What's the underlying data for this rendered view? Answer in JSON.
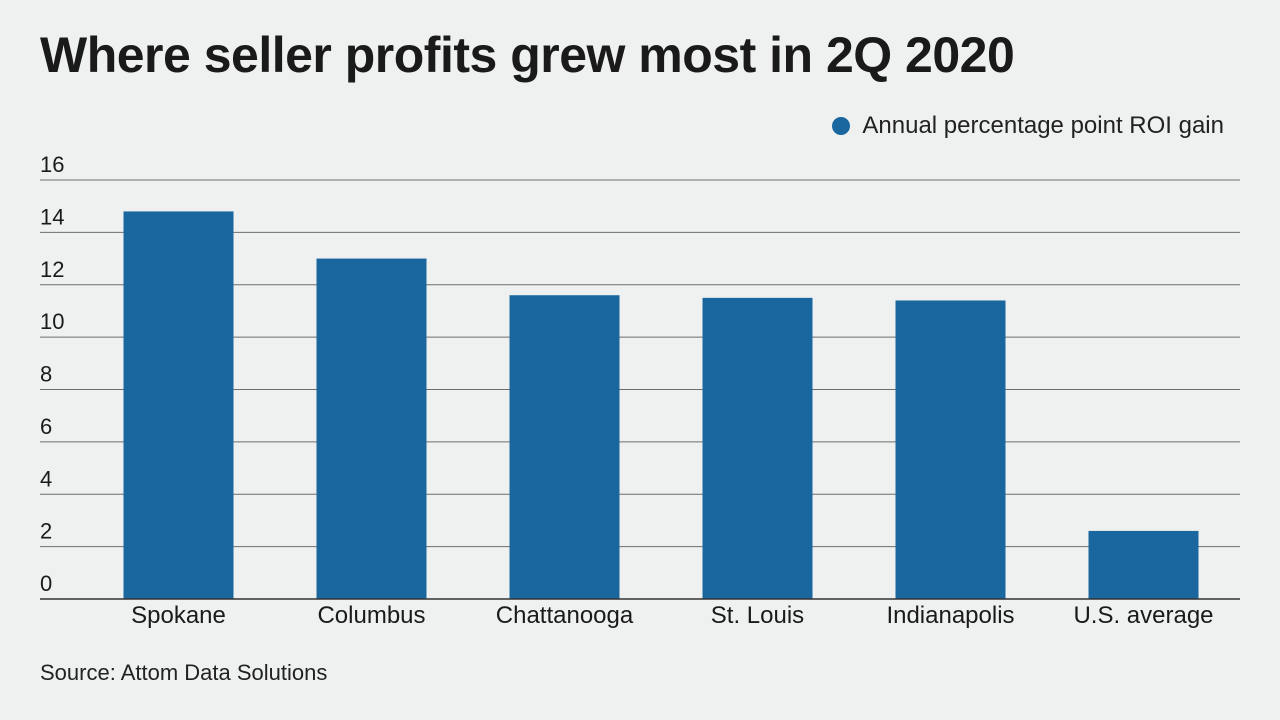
{
  "title": "Where seller profits grew most in 2Q 2020",
  "legend": {
    "label": "Annual percentage point ROI gain",
    "color": "#1a67a0"
  },
  "source": "Source: Attom Data Solutions",
  "chart_data": {
    "type": "bar",
    "title": "Where seller profits grew most in 2Q 2020",
    "xlabel": "",
    "ylabel": "",
    "categories": [
      "Spokane",
      "Columbus",
      "Chattanooga",
      "St. Louis",
      "Indianapolis",
      "U.S. average"
    ],
    "series": [
      {
        "name": "Annual percentage point ROI gain",
        "values": [
          14.8,
          13.0,
          11.6,
          11.5,
          11.4,
          2.6
        ]
      }
    ],
    "ylim": [
      0,
      16
    ],
    "yticks": [
      0,
      2,
      4,
      6,
      8,
      10,
      12,
      14,
      16
    ],
    "grid": true,
    "legend_position": "top-right",
    "bar_color": "#1a67a0"
  }
}
